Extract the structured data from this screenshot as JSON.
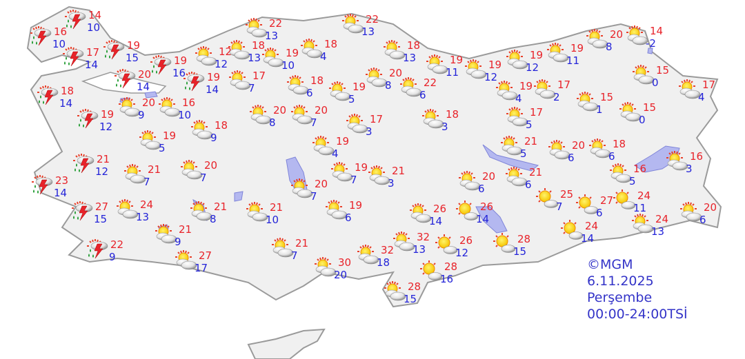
{
  "legend": {
    "copyright": "©MGM",
    "date": "6.11.2025",
    "day": "Perşembe",
    "period": "00:00-24:00TSİ"
  },
  "colors": {
    "max_temp": "#e8232a",
    "min_temp": "#2323d8",
    "land": "#f0f0f0",
    "border": "#9a9a9a",
    "water": "#b4b8f0",
    "legend": "#3434c8"
  },
  "icon_types": {
    "storm": "thunderstorm-rain-icon",
    "pc": "partly-cloudy-icon",
    "sun": "mostly-sunny-icon"
  },
  "stations": [
    {
      "max": "14",
      "min": "10",
      "icon": "storm"
    },
    {
      "max": "16",
      "min": "10",
      "icon": "storm"
    },
    {
      "max": "17",
      "min": "14",
      "icon": "storm"
    },
    {
      "max": "19",
      "min": "15",
      "icon": "storm"
    },
    {
      "max": "19",
      "min": "16",
      "icon": "storm"
    },
    {
      "max": "20",
      "min": "14",
      "icon": "storm"
    },
    {
      "max": "19",
      "min": "14",
      "icon": "storm"
    },
    {
      "max": "18",
      "min": "14",
      "icon": "storm"
    },
    {
      "max": "19",
      "min": "12",
      "icon": "storm"
    },
    {
      "max": "21",
      "min": "12",
      "icon": "storm"
    },
    {
      "max": "23",
      "min": "14",
      "icon": "storm"
    },
    {
      "max": "27",
      "min": "15",
      "icon": "storm"
    },
    {
      "max": "22",
      "min": "9",
      "icon": "storm"
    },
    {
      "max": "12",
      "min": "12",
      "icon": "pc"
    },
    {
      "max": "18",
      "min": "13",
      "icon": "pc"
    },
    {
      "max": "22",
      "min": "13",
      "icon": "pc"
    },
    {
      "max": "19",
      "min": "10",
      "icon": "pc"
    },
    {
      "max": "18",
      "min": "4",
      "icon": "pc"
    },
    {
      "max": "22",
      "min": "13",
      "icon": "pc"
    },
    {
      "max": "17",
      "min": "7",
      "icon": "pc"
    },
    {
      "max": "18",
      "min": "6",
      "icon": "pc"
    },
    {
      "max": "19",
      "min": "5",
      "icon": "pc"
    },
    {
      "max": "20",
      "min": "8",
      "icon": "pc"
    },
    {
      "max": "22",
      "min": "6",
      "icon": "pc"
    },
    {
      "max": "18",
      "min": "13",
      "icon": "pc"
    },
    {
      "max": "19",
      "min": "11",
      "icon": "pc"
    },
    {
      "max": "20",
      "min": "9",
      "icon": "pc"
    },
    {
      "max": "16",
      "min": "10",
      "icon": "pc"
    },
    {
      "max": "18",
      "min": "9",
      "icon": "pc"
    },
    {
      "max": "20",
      "min": "8",
      "icon": "pc"
    },
    {
      "max": "20",
      "min": "7",
      "icon": "pc"
    },
    {
      "max": "17",
      "min": "3",
      "icon": "pc"
    },
    {
      "max": "18",
      "min": "3",
      "icon": "pc"
    },
    {
      "max": "19",
      "min": "5",
      "icon": "pc"
    },
    {
      "max": "19",
      "min": "4",
      "icon": "pc"
    },
    {
      "max": "21",
      "min": "7",
      "icon": "pc"
    },
    {
      "max": "20",
      "min": "7",
      "icon": "pc"
    },
    {
      "max": "19",
      "min": "7",
      "icon": "pc"
    },
    {
      "max": "21",
      "min": "3",
      "icon": "pc"
    },
    {
      "max": "20",
      "min": "7",
      "icon": "pc"
    },
    {
      "max": "24",
      "min": "13",
      "icon": "pc"
    },
    {
      "max": "21",
      "min": "8",
      "icon": "pc"
    },
    {
      "max": "21",
      "min": "10",
      "icon": "pc"
    },
    {
      "max": "19",
      "min": "6",
      "icon": "pc"
    },
    {
      "max": "21",
      "min": "9",
      "icon": "pc"
    },
    {
      "max": "21",
      "min": "7",
      "icon": "pc"
    },
    {
      "max": "27",
      "min": "17",
      "icon": "pc"
    },
    {
      "max": "30",
      "min": "20",
      "icon": "pc"
    },
    {
      "max": "32",
      "min": "18",
      "icon": "pc"
    },
    {
      "max": "32",
      "min": "13",
      "icon": "pc"
    },
    {
      "max": "28",
      "min": "15",
      "icon": "pc"
    },
    {
      "max": "26",
      "min": "14",
      "icon": "pc"
    },
    {
      "max": "26",
      "min": "14",
      "icon": "sun"
    },
    {
      "max": "26",
      "min": "12",
      "icon": "sun"
    },
    {
      "max": "28",
      "min": "16",
      "icon": "sun"
    },
    {
      "max": "28",
      "min": "15",
      "icon": "sun"
    },
    {
      "max": "20",
      "min": "6",
      "icon": "pc"
    },
    {
      "max": "21",
      "min": "6",
      "icon": "pc"
    },
    {
      "max": "21",
      "min": "5",
      "icon": "pc"
    },
    {
      "max": "25",
      "min": "7",
      "icon": "sun"
    },
    {
      "max": "27",
      "min": "6",
      "icon": "sun"
    },
    {
      "max": "24",
      "min": "11",
      "icon": "sun"
    },
    {
      "max": "24",
      "min": "14",
      "icon": "sun"
    },
    {
      "max": "24",
      "min": "13",
      "icon": "pc"
    },
    {
      "max": "20",
      "min": "6",
      "icon": "pc"
    },
    {
      "max": "16",
      "min": "5",
      "icon": "pc"
    },
    {
      "max": "16",
      "min": "3",
      "icon": "pc"
    },
    {
      "max": "20",
      "min": "6",
      "icon": "pc"
    },
    {
      "max": "18",
      "min": "6",
      "icon": "pc"
    },
    {
      "max": "17",
      "min": "5",
      "icon": "pc"
    },
    {
      "max": "15",
      "min": "1",
      "icon": "pc"
    },
    {
      "max": "15",
      "min": "0",
      "icon": "pc"
    },
    {
      "max": "17",
      "min": "4",
      "icon": "pc"
    },
    {
      "max": "15",
      "min": "0",
      "icon": "pc"
    },
    {
      "max": "14",
      "min": "-2",
      "icon": "pc"
    },
    {
      "max": "20",
      "min": "8",
      "icon": "pc"
    },
    {
      "max": "19",
      "min": "11",
      "icon": "pc"
    },
    {
      "max": "19",
      "min": "12",
      "icon": "pc"
    },
    {
      "max": "19",
      "min": "12",
      "icon": "pc"
    },
    {
      "max": "19",
      "min": "4",
      "icon": "pc"
    },
    {
      "max": "17",
      "min": "2",
      "icon": "pc"
    }
  ]
}
